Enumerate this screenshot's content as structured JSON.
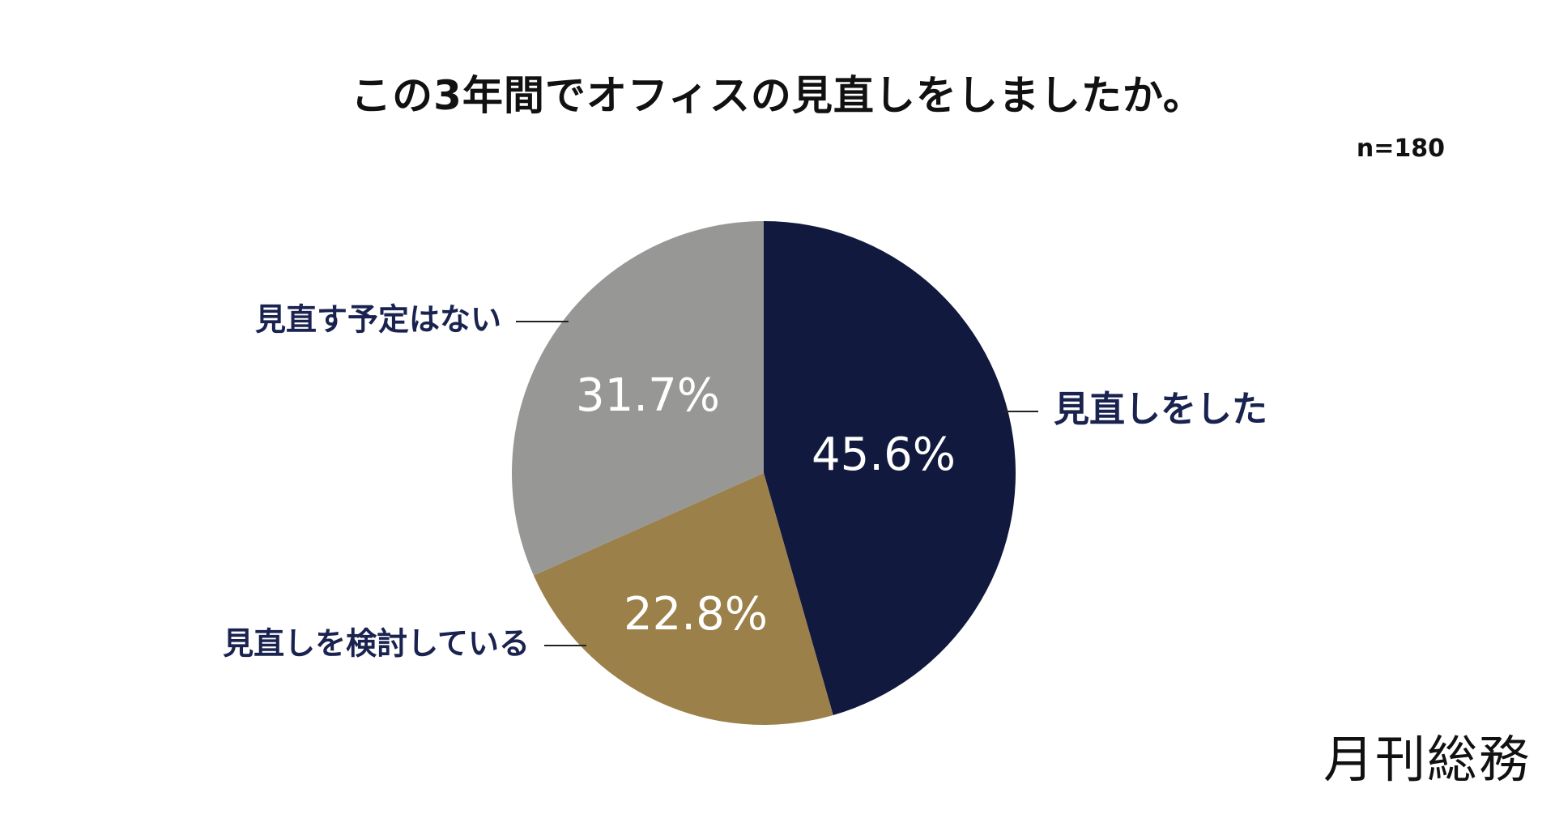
{
  "title": "この3年間でオフィスの見直しをしましたか。",
  "sample_size": "n=180",
  "publisher": "月刊総務",
  "colors": {
    "did_review": "#111a3e",
    "considering": "#9c8049",
    "no_plan": "#979896",
    "label_text": "#1a2350",
    "value_text": "#ffffff",
    "leader_line": "#222222"
  },
  "chart_data": {
    "type": "pie",
    "categories": [
      "見直しをした",
      "見直しを検討している",
      "見直す予定はない"
    ],
    "values": [
      45.6,
      22.8,
      31.7
    ],
    "value_labels": [
      "45.6%",
      "22.8%",
      "31.7%"
    ],
    "title": "この3年間でオフィスの見直しをしましたか。",
    "start_angle_deg": 0,
    "direction": "clockwise",
    "legend": "none"
  }
}
